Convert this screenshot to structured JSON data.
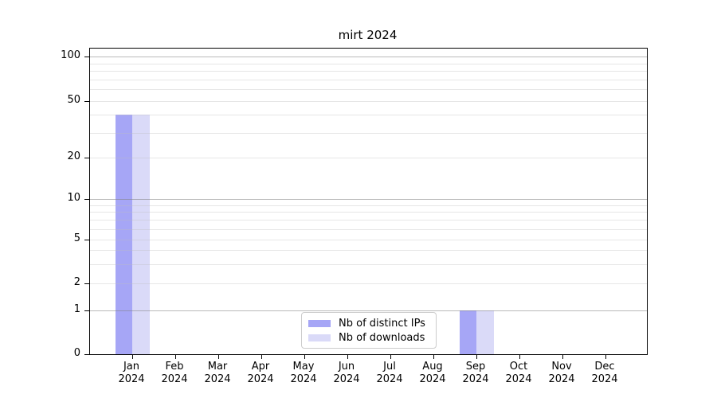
{
  "title": "mirt 2024",
  "chart_data": {
    "type": "bar",
    "title": "mirt 2024",
    "categories": [
      "Jan",
      "Feb",
      "Mar",
      "Apr",
      "May",
      "Jun",
      "Jul",
      "Aug",
      "Sep",
      "Oct",
      "Nov",
      "Dec"
    ],
    "category_year": "2024",
    "series": [
      {
        "name": "Nb of distinct IPs",
        "color": "#a6a6f6",
        "values": [
          40,
          0,
          0,
          0,
          0,
          0,
          0,
          0,
          1,
          0,
          0,
          0
        ]
      },
      {
        "name": "Nb of downloads",
        "color": "#dadaf8",
        "values": [
          40,
          0,
          0,
          0,
          0,
          0,
          0,
          0,
          1,
          0,
          0,
          0
        ]
      }
    ],
    "y_ticks": [
      0,
      1,
      2,
      5,
      10,
      20,
      50,
      100
    ],
    "y_major_gridlines": [
      1,
      10,
      100
    ],
    "y_minor_gridlines": [
      2,
      3,
      4,
      5,
      6,
      7,
      8,
      9,
      20,
      30,
      40,
      50,
      60,
      70,
      80,
      90
    ],
    "scale": "log-like",
    "ylim": [
      0,
      100
    ],
    "grid": true,
    "legend_position": "bottom-center"
  },
  "colors": {
    "background": "#ffffff",
    "axis": "#000000",
    "major_grid": "#b0b0b0",
    "minor_grid": "#e6e6e6"
  }
}
